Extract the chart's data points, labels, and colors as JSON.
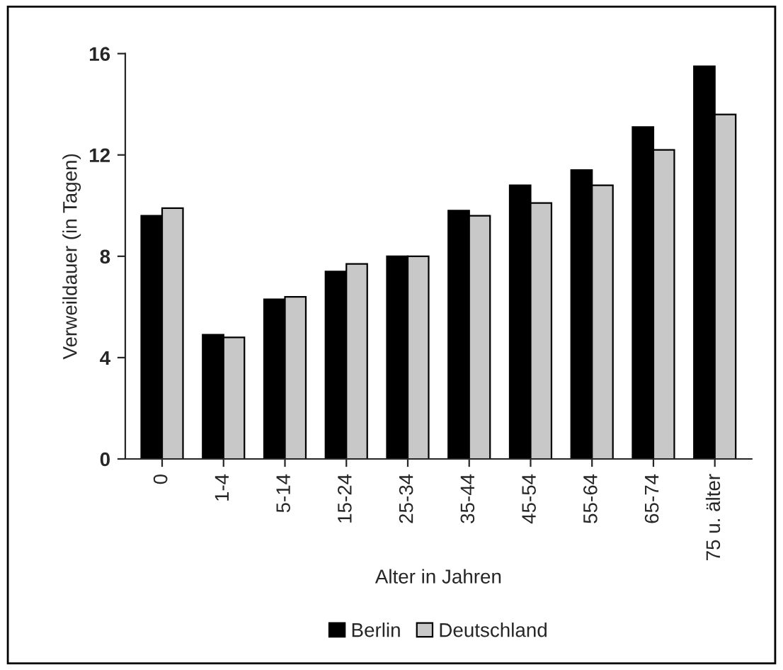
{
  "chart_data": {
    "type": "bar",
    "xlabel": "Alter in Jahren",
    "ylabel": "Verweildauer (in Tagen)",
    "categories": [
      "0",
      "1-4",
      "5-14",
      "15-24",
      "25-34",
      "35-44",
      "45-54",
      "55-64",
      "65-74",
      "75 u. älter"
    ],
    "series": [
      {
        "name": "Berlin",
        "color": "#000000",
        "values": [
          9.6,
          4.9,
          6.3,
          7.4,
          8.0,
          9.8,
          10.8,
          11.4,
          13.1,
          15.5
        ]
      },
      {
        "name": "Deutschland",
        "color": "#c8c8c8",
        "values": [
          9.9,
          4.8,
          6.4,
          7.7,
          8.0,
          9.6,
          10.1,
          10.8,
          12.2,
          13.6
        ]
      }
    ],
    "ylim": [
      0,
      16
    ],
    "yticks": [
      0,
      4,
      8,
      12,
      16
    ],
    "grid": false,
    "legend": "bottom"
  }
}
